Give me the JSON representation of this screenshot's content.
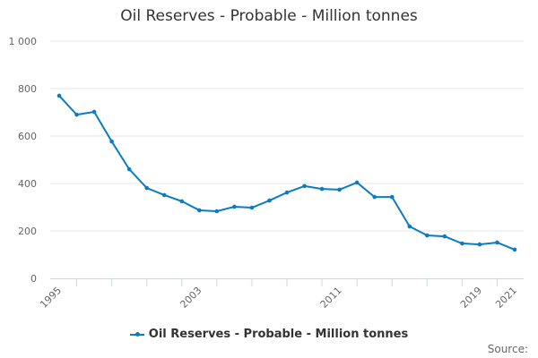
{
  "chart_data": {
    "type": "line",
    "title": "Oil Reserves - Probable - Million tonnes",
    "xlabel": "",
    "ylabel": "",
    "x": [
      1995,
      1996,
      1997,
      1998,
      1999,
      2000,
      2001,
      2002,
      2003,
      2004,
      2005,
      2006,
      2007,
      2008,
      2009,
      2010,
      2011,
      2012,
      2013,
      2014,
      2015,
      2016,
      2017,
      2018,
      2019,
      2020,
      2021
    ],
    "series": [
      {
        "name": "Oil Reserves - Probable - Million tonnes",
        "color": "#0a7cc4",
        "values": [
          770,
          690,
          702,
          577,
          460,
          381,
          351,
          325,
          287,
          283,
          302,
          298,
          328,
          362,
          389,
          377,
          374,
          404,
          343,
          343,
          219,
          181,
          177,
          147,
          143,
          151,
          121
        ]
      }
    ],
    "ylim": [
      0,
      1000
    ],
    "yticks": [
      "0",
      "200",
      "400",
      "600",
      "800",
      "1 000"
    ],
    "xtick_labels": [
      "1995",
      "2003",
      "2011",
      "2019",
      "2021"
    ],
    "grid": true,
    "legend_position": "bottom",
    "source_label": "Source:"
  }
}
